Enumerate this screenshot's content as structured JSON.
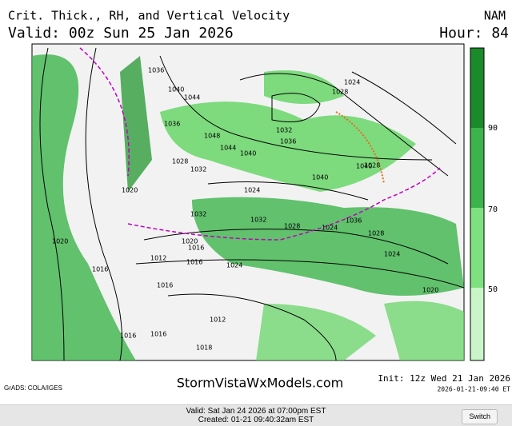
{
  "header": {
    "title": "Crit. Thick., RH, and Vertical Velocity",
    "model": "NAM",
    "valid": "Valid: 00z Sun 25 Jan 2026",
    "hour": "Hour: 84"
  },
  "map": {
    "labels": [
      "1036",
      "1040",
      "1044",
      "1036",
      "1048",
      "1044",
      "1040",
      "1032",
      "1036",
      "1024",
      "1028",
      "1040",
      "1028",
      "1032",
      "1028",
      "1020",
      "1032",
      "1024",
      "1032",
      "1028",
      "1024",
      "1016",
      "1024",
      "1012",
      "1016",
      "1020",
      "1012",
      "1016",
      "1020",
      "1016",
      "1018",
      "1016",
      "1016",
      "1024",
      "1040",
      "1036",
      "1028",
      "1020"
    ]
  },
  "colorbar": {
    "labels": [
      "90",
      "70",
      "50"
    ]
  },
  "footer": {
    "credit": "GrADS: COLA/IGES",
    "site": "StormVistaWxModels.com",
    "init": "Init: 12z Wed 21 Jan 2026",
    "stamp": "2026-01-21-09:40 ET"
  },
  "bottom": {
    "valid": "Valid: Sat Jan 24 2026 at 07:00pm EST",
    "created": "Created: 01-21 09:40:32am EST",
    "button": "Switch"
  }
}
